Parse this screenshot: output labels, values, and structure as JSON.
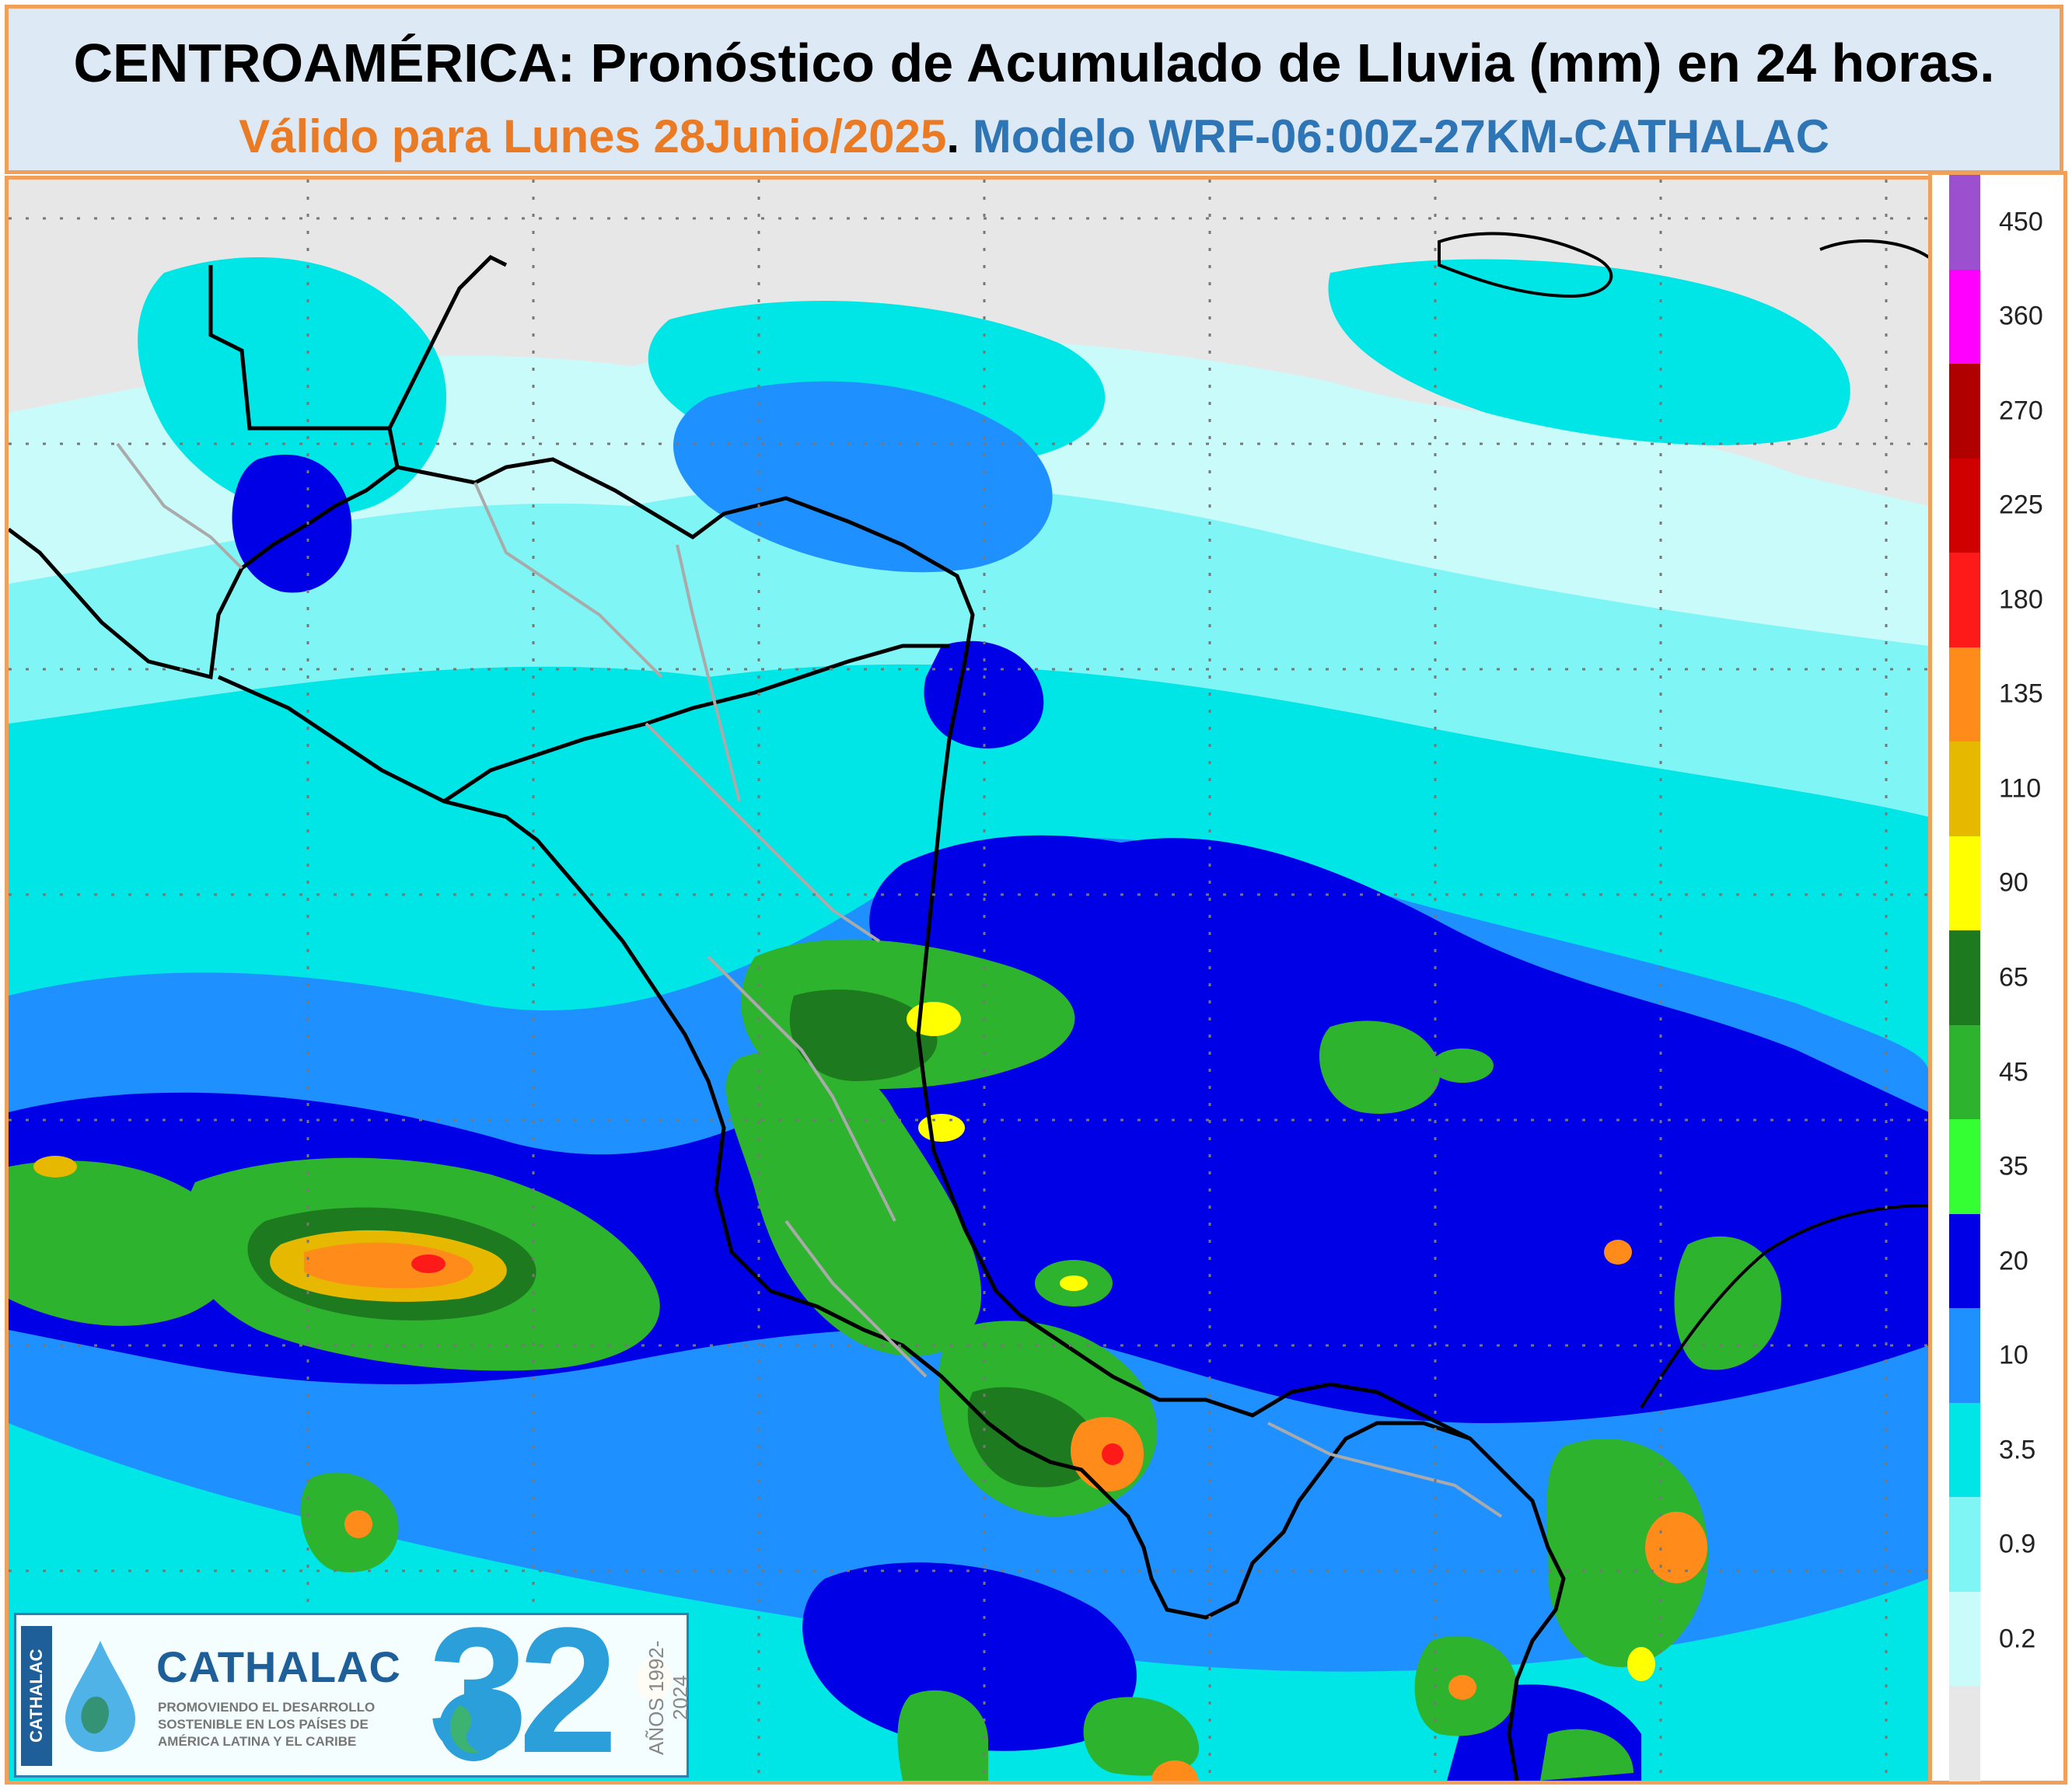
{
  "header": {
    "title": "CENTROAMÉRICA: Pronóstico de Acumulado de Lluvia (mm) en 24 horas.",
    "valid": "Válido para Lunes 28Junio/2025",
    "dot": ".",
    "model": " Modelo WRF-06:00Z-27KM-CATHALAC"
  },
  "legend": {
    "units": "mm",
    "bands": [
      {
        "from": "450",
        "color": "#9c4fcf"
      },
      {
        "from": "360",
        "color": "#ff00ff"
      },
      {
        "from": "270",
        "color": "#b00000"
      },
      {
        "from": "225",
        "color": "#d00000"
      },
      {
        "from": "180",
        "color": "#ff1a1a"
      },
      {
        "from": "135",
        "color": "#ff8c1a"
      },
      {
        "from": "110",
        "color": "#e6b800"
      },
      {
        "from": "90",
        "color": "#ffff00"
      },
      {
        "from": "65",
        "color": "#1e7a1e"
      },
      {
        "from": "45",
        "color": "#2db32d"
      },
      {
        "from": "35",
        "color": "#33ff33"
      },
      {
        "from": "20",
        "color": "#0000e6"
      },
      {
        "from": "10",
        "color": "#1e90ff"
      },
      {
        "from": "3.5",
        "color": "#00e5e5"
      },
      {
        "from": "0.9",
        "color": "#7ff5f5"
      },
      {
        "from": "0.2",
        "color": "#c9fbfb"
      },
      {
        "from": "",
        "color": "#e7e7e7"
      }
    ]
  },
  "logo": {
    "vertical": "CATHALAC",
    "name": "CATHALAC",
    "tagline": "PROMOVIENDO EL DESARROLLO SOSTENIBLE EN LOS PAÍSES DE AMÉRICA LATINA Y EL CARIBE",
    "number": "32",
    "years": "AÑOS 1992-2024"
  }
}
